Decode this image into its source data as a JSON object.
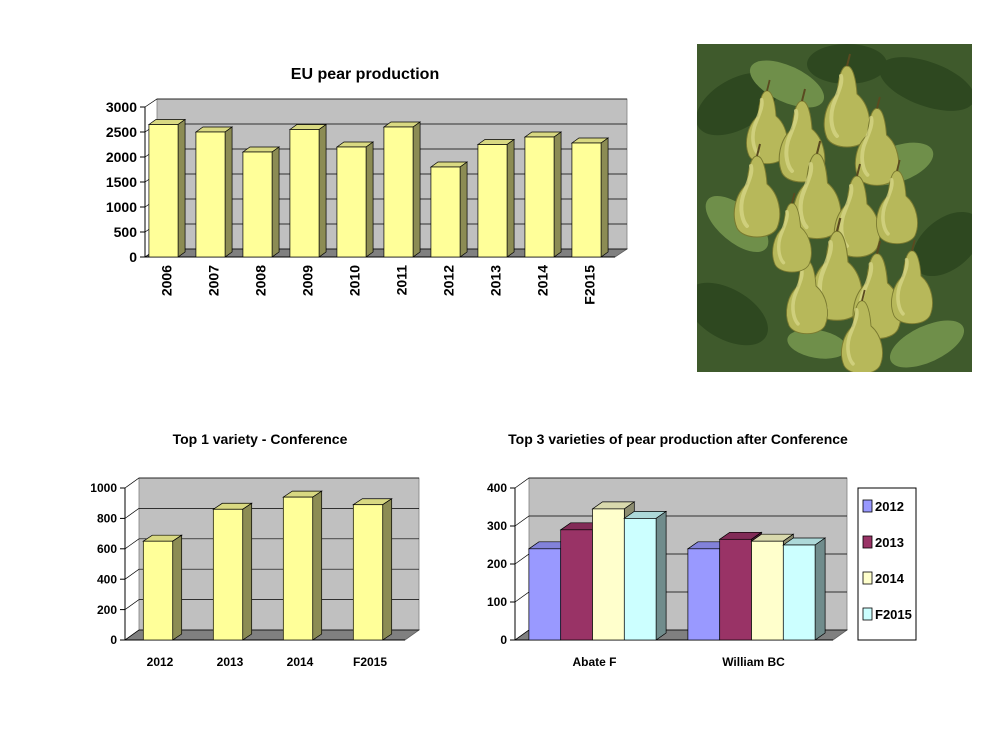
{
  "chart_data": [
    {
      "type": "bar",
      "title": "EU pear production",
      "categories": [
        "2006",
        "2007",
        "2008",
        "2009",
        "2010",
        "2011",
        "2012",
        "2013",
        "2014",
        "F2015"
      ],
      "values": [
        2650,
        2500,
        2100,
        2550,
        2200,
        2600,
        1800,
        2250,
        2400,
        2280
      ],
      "ylim": [
        0,
        3000
      ],
      "yticks": [
        0,
        500,
        1000,
        1500,
        2000,
        2500,
        3000
      ],
      "xlabel": "",
      "ylabel": "",
      "grid": true,
      "bar_color": "#ffff99"
    },
    {
      "type": "bar",
      "title": "Top 1 variety -  Conference",
      "categories": [
        "2012",
        "2013",
        "2014",
        "F2015"
      ],
      "values": [
        650,
        860,
        940,
        890
      ],
      "ylim": [
        0,
        1000
      ],
      "yticks": [
        0,
        200,
        400,
        600,
        800,
        1000
      ],
      "xlabel": "",
      "ylabel": "",
      "grid": true,
      "bar_color": "#ffff99"
    },
    {
      "type": "bar",
      "title": "Top 3 varieties of pear production after Conference",
      "categories": [
        "Abate F",
        "William BC"
      ],
      "series": [
        {
          "name": "2012",
          "values": [
            240,
            240
          ],
          "color": "#9999ff"
        },
        {
          "name": "2013",
          "values": [
            290,
            265
          ],
          "color": "#993366"
        },
        {
          "name": "2014",
          "values": [
            345,
            260
          ],
          "color": "#ffffcc"
        },
        {
          "name": "F2015",
          "values": [
            320,
            250
          ],
          "color": "#ccffff"
        }
      ],
      "ylim": [
        0,
        400
      ],
      "yticks": [
        0,
        100,
        200,
        300,
        400
      ],
      "xlabel": "",
      "ylabel": "",
      "grid": true,
      "legend": "right"
    }
  ],
  "photo": {
    "icon": "pear-tree-photo"
  }
}
